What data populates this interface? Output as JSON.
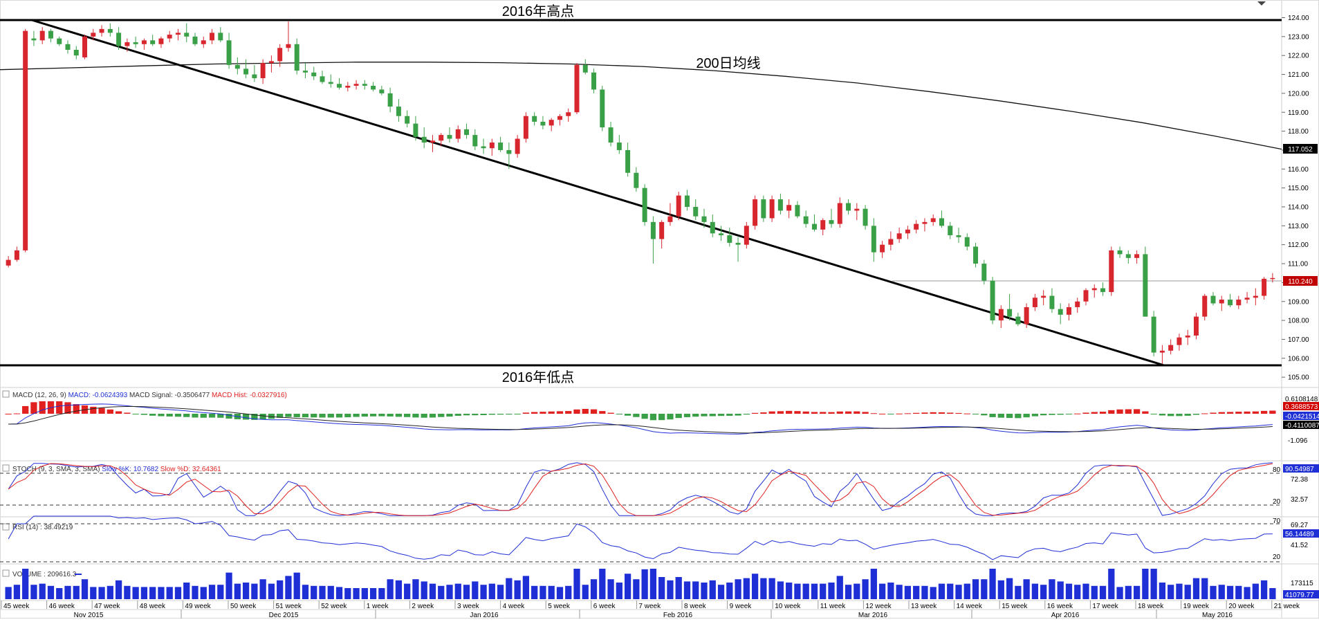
{
  "annotations": {
    "high_label": "2016年高点",
    "low_label": "2016年低点",
    "ma_label": "200日均线"
  },
  "colors": {
    "up": "#d8262e",
    "down": "#3aa047",
    "macd_line": "#1f2fd6",
    "signal_line": "#222222",
    "stoch_k": "#1f2fd6",
    "stoch_d": "#e0211f",
    "rsi": "#1f2fd6",
    "volume": "#1f2fd6"
  },
  "price_axis": {
    "ticks": [
      "124.00",
      "123.00",
      "122.00",
      "121.00",
      "120.00",
      "119.00",
      "118.00",
      "117.00",
      "116.00",
      "115.00",
      "114.00",
      "113.00",
      "112.00",
      "111.00",
      "110.00",
      "109.00",
      "108.00",
      "107.00",
      "106.00",
      "105.00"
    ],
    "ma_value": "117.052",
    "last_value": "110.240"
  },
  "macd": {
    "header_prefix": "MACD (12, 26, 9) ",
    "macd_label": "MACD: -0.0624393",
    "signal_label": " MACD Signal: -0.3506477",
    "hist_label": " MACD Hist: -0.0327916)",
    "axis": [
      "0.6108148",
      "-1.096"
    ],
    "tag_hist": "0.3688573",
    "tag_macd": "-0.0421514",
    "tag_signal": "-0.4110087"
  },
  "stoch": {
    "header_prefix": "STOCH (9, 3, SMA, 3, SMA) ",
    "k_label": "Slow %K: 10.7682",
    "d_label": " Slow %D: 32.64361",
    "axis": [
      "80",
      "72.38",
      "32.57",
      "20"
    ],
    "tag": "90.54987"
  },
  "rsi": {
    "header": "RSI (14) : 38.49219",
    "axis": [
      "70",
      "69.27",
      "41.52",
      "20"
    ],
    "tag": "56.14489"
  },
  "volume": {
    "header": "VOLUME : 209616.3",
    "axis": [
      "173115"
    ],
    "tag": "41079.77"
  },
  "time_axis": {
    "weeks": [
      "45 week",
      "46 week",
      "47 week",
      "48 week",
      "49 week",
      "50 week",
      "51 week",
      "52 week",
      "1 week",
      "2 week",
      "3 week",
      "4 week",
      "5 week",
      "6 week",
      "7 week",
      "8 week",
      "9 week",
      "10 week",
      "11 week",
      "12 week",
      "13 week",
      "14 week",
      "15 week",
      "16 week",
      "17 week",
      "18 week",
      "19 week",
      "20 week",
      "21 week"
    ],
    "months": [
      "Nov 2015",
      "Dec 2015",
      "Jan 2016",
      "Feb 2016",
      "Mar 2016",
      "Apr 2016",
      "May 2016"
    ]
  },
  "chart_data": {
    "type": "candlestick",
    "ylim": [
      105,
      124
    ],
    "series": [
      {
        "values": [
          [
            110.9,
            111.4,
            110.8,
            111.2
          ],
          [
            111.2,
            111.9,
            111.1,
            111.7
          ],
          [
            111.7,
            123.4,
            111.6,
            123.3
          ],
          [
            122.9,
            123.3,
            122.5,
            122.8
          ],
          [
            122.8,
            123.5,
            122.6,
            123.3
          ],
          [
            123.3,
            123.4,
            122.7,
            122.9
          ],
          [
            122.9,
            123.0,
            122.5,
            122.6
          ],
          [
            122.6,
            122.8,
            122.1,
            122.3
          ],
          [
            122.3,
            122.5,
            121.8,
            122.0
          ],
          [
            121.9,
            123.1,
            121.8,
            123.0
          ],
          [
            123.0,
            123.4,
            122.8,
            123.2
          ],
          [
            123.2,
            123.6,
            123.0,
            123.4
          ],
          [
            123.4,
            123.7,
            123.0,
            123.2
          ],
          [
            123.2,
            123.5,
            122.3,
            122.5
          ],
          [
            122.5,
            122.9,
            122.2,
            122.7
          ],
          [
            122.7,
            123.0,
            122.4,
            122.6
          ],
          [
            122.6,
            122.9,
            122.3,
            122.8
          ],
          [
            122.8,
            123.1,
            122.5,
            122.6
          ],
          [
            122.6,
            123.0,
            122.4,
            122.9
          ],
          [
            122.9,
            123.3,
            122.7,
            123.1
          ],
          [
            123.1,
            123.4,
            122.8,
            123.2
          ],
          [
            123.2,
            123.7,
            122.7,
            123.0
          ],
          [
            123.0,
            123.2,
            122.5,
            122.6
          ],
          [
            122.6,
            123.0,
            122.4,
            122.8
          ],
          [
            122.8,
            123.4,
            122.6,
            123.2
          ],
          [
            123.2,
            123.5,
            122.7,
            122.8
          ],
          [
            122.8,
            123.2,
            121.3,
            121.5
          ],
          [
            121.5,
            121.9,
            121.0,
            121.3
          ],
          [
            121.3,
            121.8,
            120.8,
            121.0
          ],
          [
            121.0,
            121.5,
            120.6,
            120.8
          ],
          [
            120.8,
            121.8,
            120.5,
            121.6
          ],
          [
            121.6,
            122.0,
            121.1,
            121.7
          ],
          [
            121.7,
            122.6,
            121.4,
            122.4
          ],
          [
            122.4,
            123.8,
            122.2,
            122.6
          ],
          [
            122.6,
            122.9,
            121.0,
            121.2
          ],
          [
            121.2,
            121.6,
            120.8,
            121.1
          ],
          [
            121.1,
            121.4,
            120.7,
            120.9
          ],
          [
            120.9,
            121.2,
            120.5,
            120.6
          ],
          [
            120.6,
            121.0,
            120.3,
            120.5
          ],
          [
            120.5,
            120.8,
            120.2,
            120.3
          ],
          [
            120.3,
            120.6,
            120.1,
            120.4
          ],
          [
            120.4,
            120.7,
            120.2,
            120.5
          ],
          [
            120.5,
            120.7,
            120.2,
            120.4
          ],
          [
            120.4,
            120.6,
            120.1,
            120.2
          ],
          [
            120.2,
            120.4,
            119.9,
            120.0
          ],
          [
            120.0,
            120.3,
            119.0,
            119.3
          ],
          [
            119.3,
            119.7,
            118.5,
            118.8
          ],
          [
            118.8,
            119.1,
            118.2,
            118.4
          ],
          [
            118.4,
            118.8,
            117.5,
            117.7
          ],
          [
            117.7,
            118.2,
            117.1,
            117.4
          ],
          [
            117.4,
            117.8,
            116.9,
            117.5
          ],
          [
            117.5,
            117.9,
            117.2,
            117.8
          ],
          [
            117.8,
            118.2,
            117.4,
            117.6
          ],
          [
            117.6,
            118.3,
            117.4,
            118.1
          ],
          [
            118.1,
            118.4,
            117.6,
            117.8
          ],
          [
            117.8,
            118.1,
            117.0,
            117.2
          ],
          [
            117.2,
            117.6,
            116.8,
            117.1
          ],
          [
            117.1,
            117.6,
            116.7,
            117.4
          ],
          [
            117.4,
            117.7,
            116.9,
            117.0
          ],
          [
            117.0,
            117.4,
            116.0,
            116.8
          ],
          [
            116.8,
            117.8,
            116.6,
            117.6
          ],
          [
            117.6,
            119.0,
            117.4,
            118.8
          ],
          [
            118.8,
            119.0,
            118.3,
            118.5
          ],
          [
            118.5,
            118.8,
            118.1,
            118.3
          ],
          [
            118.3,
            118.7,
            118.0,
            118.6
          ],
          [
            118.6,
            118.9,
            118.3,
            118.8
          ],
          [
            118.8,
            119.2,
            118.5,
            119.0
          ],
          [
            119.0,
            121.6,
            118.9,
            121.5
          ],
          [
            121.5,
            121.8,
            121.0,
            121.1
          ],
          [
            121.1,
            121.3,
            120.0,
            120.2
          ],
          [
            120.2,
            120.4,
            118.0,
            118.2
          ],
          [
            118.2,
            118.5,
            117.2,
            117.4
          ],
          [
            117.4,
            117.8,
            116.8,
            117.0
          ],
          [
            117.0,
            117.4,
            115.6,
            115.8
          ],
          [
            115.8,
            116.1,
            114.8,
            115.0
          ],
          [
            115.0,
            115.2,
            113.0,
            113.2
          ],
          [
            113.2,
            113.5,
            111.0,
            112.3
          ],
          [
            112.3,
            113.3,
            111.8,
            113.2
          ],
          [
            113.2,
            114.2,
            113.0,
            113.5
          ],
          [
            113.5,
            114.8,
            113.3,
            114.6
          ],
          [
            114.6,
            114.9,
            113.8,
            114.0
          ],
          [
            114.0,
            114.4,
            113.3,
            113.5
          ],
          [
            113.5,
            113.9,
            112.9,
            113.2
          ],
          [
            113.2,
            113.6,
            112.4,
            112.6
          ],
          [
            112.6,
            113.0,
            112.2,
            112.5
          ],
          [
            112.5,
            112.9,
            111.9,
            112.1
          ],
          [
            112.1,
            112.4,
            111.1,
            112.0
          ],
          [
            112.0,
            113.2,
            111.8,
            113.0
          ],
          [
            113.0,
            114.6,
            112.8,
            114.4
          ],
          [
            114.4,
            114.6,
            113.2,
            113.4
          ],
          [
            113.4,
            114.6,
            113.2,
            114.4
          ],
          [
            114.4,
            114.7,
            113.6,
            113.8
          ],
          [
            113.8,
            114.4,
            113.4,
            114.1
          ],
          [
            114.1,
            114.3,
            113.4,
            113.5
          ],
          [
            113.5,
            113.8,
            112.9,
            113.1
          ],
          [
            113.1,
            113.6,
            112.7,
            112.8
          ],
          [
            112.8,
            113.4,
            112.5,
            113.3
          ],
          [
            113.3,
            113.9,
            112.9,
            113.1
          ],
          [
            113.1,
            114.5,
            112.9,
            114.2
          ],
          [
            114.2,
            114.4,
            113.6,
            113.8
          ],
          [
            113.8,
            114.2,
            113.3,
            113.9
          ],
          [
            113.9,
            114.1,
            112.8,
            113.0
          ],
          [
            113.0,
            113.4,
            111.1,
            111.6
          ],
          [
            111.6,
            112.2,
            111.3,
            112.0
          ],
          [
            112.0,
            112.7,
            111.7,
            112.3
          ],
          [
            112.3,
            112.9,
            112.1,
            112.6
          ],
          [
            112.6,
            113.0,
            112.3,
            112.8
          ],
          [
            112.8,
            113.3,
            112.6,
            113.1
          ],
          [
            113.1,
            113.4,
            112.7,
            113.2
          ],
          [
            113.2,
            113.6,
            113.0,
            113.4
          ],
          [
            113.4,
            113.8,
            112.9,
            113.0
          ],
          [
            113.0,
            113.2,
            112.3,
            112.5
          ],
          [
            112.5,
            112.9,
            112.1,
            112.4
          ],
          [
            112.4,
            112.6,
            111.7,
            111.9
          ],
          [
            111.9,
            112.1,
            110.8,
            111.0
          ],
          [
            111.0,
            111.2,
            109.9,
            110.1
          ],
          [
            110.1,
            110.3,
            107.8,
            108.0
          ],
          [
            108.0,
            108.8,
            107.6,
            108.6
          ],
          [
            108.6,
            109.4,
            108.0,
            108.2
          ],
          [
            108.2,
            108.4,
            107.7,
            107.8
          ],
          [
            107.8,
            108.9,
            107.6,
            108.7
          ],
          [
            108.7,
            109.4,
            108.5,
            109.2
          ],
          [
            109.2,
            109.6,
            108.8,
            109.3
          ],
          [
            109.3,
            109.7,
            108.4,
            108.6
          ],
          [
            108.6,
            108.9,
            107.8,
            108.3
          ],
          [
            108.3,
            108.9,
            108.0,
            108.7
          ],
          [
            108.7,
            109.2,
            108.4,
            109.0
          ],
          [
            109.0,
            109.7,
            108.8,
            109.6
          ],
          [
            109.6,
            109.9,
            109.2,
            109.7
          ],
          [
            109.7,
            110.0,
            109.3,
            109.5
          ],
          [
            109.5,
            111.9,
            109.3,
            111.7
          ],
          [
            111.7,
            111.9,
            111.3,
            111.5
          ],
          [
            111.5,
            111.7,
            111.0,
            111.3
          ],
          [
            111.3,
            111.7,
            111.0,
            111.5
          ],
          [
            111.5,
            111.9,
            108.2,
            108.2
          ],
          [
            108.2,
            108.5,
            106.1,
            106.3
          ],
          [
            106.3,
            106.7,
            105.7,
            106.4
          ],
          [
            106.4,
            107.0,
            106.2,
            106.7
          ],
          [
            106.7,
            107.3,
            106.4,
            107.1
          ],
          [
            107.1,
            107.5,
            106.7,
            107.2
          ],
          [
            107.2,
            108.4,
            107.0,
            108.2
          ],
          [
            108.2,
            109.4,
            108.0,
            109.3
          ],
          [
            109.3,
            109.5,
            108.8,
            108.9
          ],
          [
            108.9,
            109.3,
            108.5,
            109.1
          ],
          [
            109.1,
            109.4,
            108.7,
            108.8
          ],
          [
            108.8,
            109.3,
            108.6,
            109.1
          ],
          [
            109.1,
            109.5,
            108.9,
            109.2
          ],
          [
            109.2,
            109.7,
            108.8,
            109.3
          ],
          [
            109.3,
            110.3,
            109.1,
            110.2
          ],
          [
            110.2,
            110.5,
            110.0,
            110.24
          ]
        ]
      },
      {
        "name": "200日均线",
        "values": [
          [
            0,
            121.25
          ],
          [
            20,
            121.35
          ],
          [
            40,
            121.45
          ],
          [
            60,
            121.55
          ],
          [
            80,
            121.6
          ],
          [
            100,
            121.65
          ],
          [
            120,
            121.65
          ],
          [
            140,
            121.62
          ],
          [
            160,
            121.55
          ],
          [
            180,
            121.42
          ],
          [
            200,
            121.2
          ],
          [
            220,
            120.9
          ],
          [
            240,
            120.55
          ],
          [
            260,
            120.1
          ],
          [
            280,
            119.6
          ],
          [
            300,
            119.05
          ],
          [
            320,
            118.45
          ],
          [
            340,
            117.75
          ],
          [
            359,
            117.05
          ]
        ]
      }
    ]
  }
}
